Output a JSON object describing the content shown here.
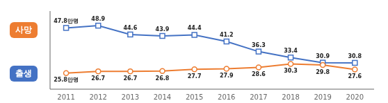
{
  "chart_data": {
    "type": "line",
    "x": [
      2011,
      2012,
      2013,
      2014,
      2015,
      2016,
      2017,
      2018,
      2019,
      2020
    ],
    "xlim": [
      2010.5,
      2020.6
    ],
    "xticks": [
      2011,
      2012,
      2013,
      2014,
      2015,
      2016,
      2017,
      2018,
      2019,
      2020
    ],
    "ylim": [
      18,
      56
    ],
    "tick_labels": "x",
    "grid": false,
    "legend": "left",
    "data_labels": true,
    "series": [
      {
        "name": "출생",
        "color": "#4472C4",
        "marker": "square",
        "values": [
          47.8,
          48.9,
          44.6,
          43.9,
          44.4,
          41.2,
          36.3,
          33.4,
          30.9,
          30.8
        ],
        "value_labels": [
          "47.8만명",
          "48.9",
          "44.6",
          "43.9",
          "44.4",
          "41.2",
          "36.3",
          "33.4",
          "30.9",
          "30.8"
        ]
      },
      {
        "name": "사망",
        "color": "#ED7D31",
        "marker": "circle",
        "values": [
          25.8,
          26.7,
          26.7,
          26.8,
          27.7,
          27.9,
          28.6,
          30.3,
          29.8,
          27.6
        ],
        "value_labels": [
          "25.8만명",
          "26.7",
          "26.7",
          "26.8",
          "27.7",
          "27.9",
          "28.6",
          "30.3",
          "29.8",
          "27.6"
        ]
      }
    ]
  }
}
